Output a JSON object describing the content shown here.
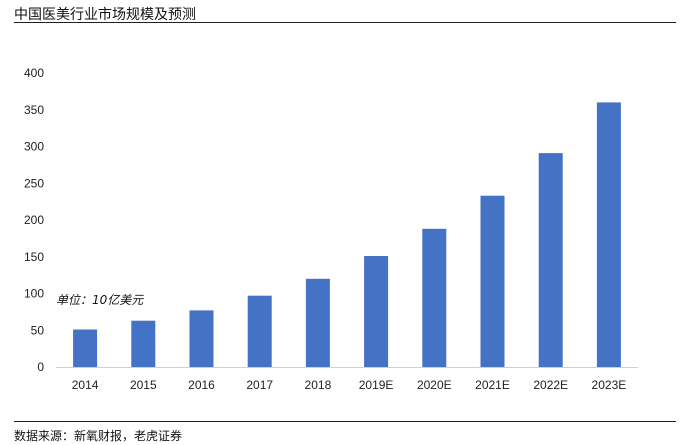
{
  "title": "中国医美行业市场规模及预测",
  "source": "数据来源：新氧财报，老虎证券",
  "chart_data": {
    "type": "bar",
    "categories": [
      "2014",
      "2015",
      "2016",
      "2017",
      "2018",
      "2019E",
      "2020E",
      "2021E",
      "2022E",
      "2023E"
    ],
    "values": [
      51,
      63,
      77,
      97,
      120,
      151,
      188,
      233,
      291,
      360
    ],
    "unit_label": "单位：10亿美元",
    "ylim": [
      0,
      400
    ],
    "yticks": [
      0,
      50,
      100,
      150,
      200,
      250,
      300,
      350,
      400
    ],
    "bar_color": "#4472C4",
    "grid": false
  }
}
